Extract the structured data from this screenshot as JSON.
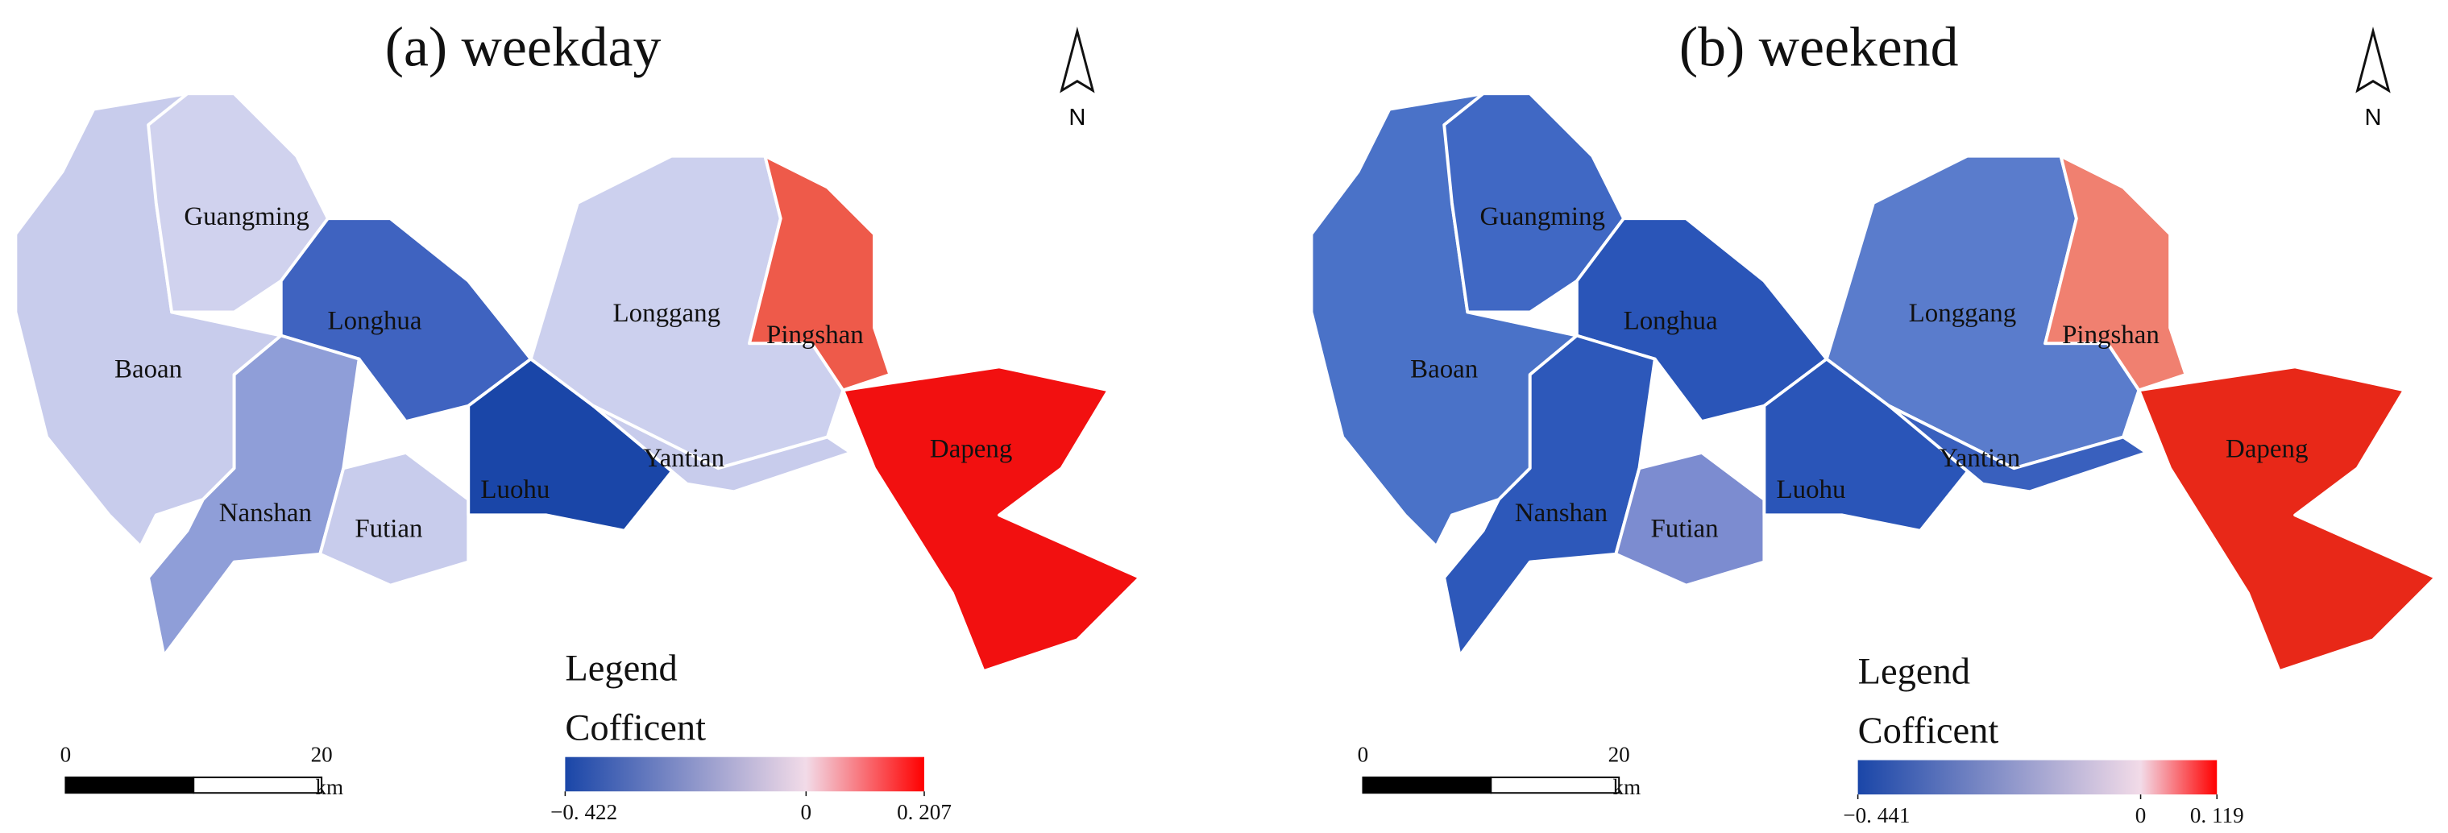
{
  "panels": [
    {
      "title": "(a) weekday",
      "north": "N",
      "districts": [
        "Guangming",
        "Longhua",
        "Baoan",
        "Nanshan",
        "Futian",
        "Luohu",
        "Longgang",
        "Pingshan",
        "Yantian",
        "Dapeng"
      ],
      "legend": {
        "title": "Legend",
        "subtitle": "Cofficent",
        "clim": [
          -0.422,
          0.207
        ],
        "ticks": [
          {
            "value": -0.422,
            "label": "−0. 422"
          },
          0,
          {
            "value": 0.207,
            "label": "0. 207"
          }
        ],
        "colors": [
          "#1a46a8",
          "#f2dbe8",
          "#ff0000"
        ]
      },
      "scale": {
        "lim": [
          0,
          20
        ],
        "ticks": [
          0,
          20
        ],
        "unit": "km"
      }
    },
    {
      "title": "(b) weekend",
      "north": "N",
      "districts": [
        "Guangming",
        "Longhua",
        "Baoan",
        "Nanshan",
        "Futian",
        "Luohu",
        "Longgang",
        "Pingshan",
        "Yantian",
        "Dapeng"
      ],
      "legend": {
        "title": "Legend",
        "subtitle": "Cofficent",
        "clim": [
          -0.441,
          0.119
        ],
        "ticks": [
          {
            "value": -0.441,
            "label": "−0. 441"
          },
          0,
          {
            "value": 0.119,
            "label": "0. 119"
          }
        ],
        "colors": [
          "#1a46a8",
          "#f2dbe8",
          "#ff0000"
        ]
      },
      "scale": {
        "lim": [
          0,
          20
        ],
        "ticks": [
          0,
          20
        ],
        "unit": "km"
      }
    }
  ]
}
